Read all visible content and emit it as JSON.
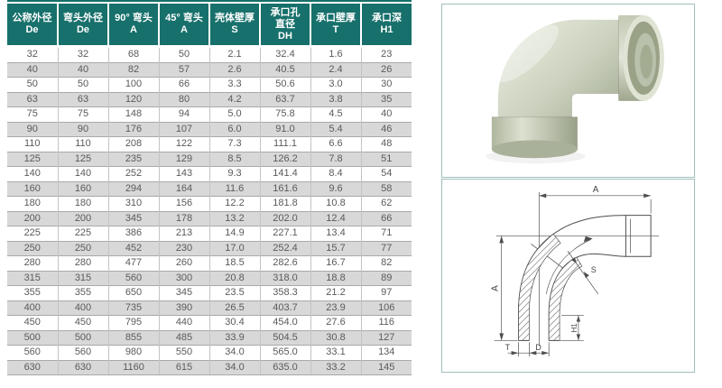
{
  "table": {
    "columns": [
      {
        "lines": [
          "公称外径",
          "De"
        ]
      },
      {
        "lines": [
          "弯头外径",
          "De"
        ]
      },
      {
        "lines": [
          "90° 弯头",
          "A"
        ]
      },
      {
        "lines": [
          "45° 弯头",
          "A"
        ]
      },
      {
        "lines": [
          "壳体壁厚",
          "S"
        ]
      },
      {
        "lines": [
          "承口孔",
          "直径",
          "DH"
        ]
      },
      {
        "lines": [
          "承口壁厚",
          "T"
        ]
      },
      {
        "lines": [
          "承口深",
          "H1"
        ]
      }
    ],
    "rows": [
      [
        "32",
        "32",
        "68",
        "50",
        "2.1",
        "32.4",
        "1.6",
        "23"
      ],
      [
        "40",
        "40",
        "82",
        "57",
        "2.6",
        "40.5",
        "2.4",
        "26"
      ],
      [
        "50",
        "50",
        "100",
        "66",
        "3.3",
        "50.6",
        "3.0",
        "30"
      ],
      [
        "63",
        "63",
        "120",
        "80",
        "4.2",
        "63.7",
        "3.8",
        "35"
      ],
      [
        "75",
        "75",
        "148",
        "94",
        "5.0",
        "75.8",
        "4.5",
        "40"
      ],
      [
        "90",
        "90",
        "176",
        "107",
        "6.0",
        "91.0",
        "5.4",
        "46"
      ],
      [
        "110",
        "110",
        "208",
        "122",
        "7.3",
        "111.1",
        "6.6",
        "48"
      ],
      [
        "125",
        "125",
        "235",
        "129",
        "8.5",
        "126.2",
        "7.8",
        "51"
      ],
      [
        "140",
        "140",
        "252",
        "143",
        "9.3",
        "141.4",
        "8.4",
        "54"
      ],
      [
        "160",
        "160",
        "294",
        "164",
        "11.6",
        "161.6",
        "9.6",
        "58"
      ],
      [
        "180",
        "180",
        "310",
        "156",
        "12.2",
        "181.8",
        "10.8",
        "62"
      ],
      [
        "200",
        "200",
        "345",
        "178",
        "13.2",
        "202.0",
        "12.4",
        "66"
      ],
      [
        "225",
        "225",
        "386",
        "213",
        "14.9",
        "227.1",
        "13.4",
        "71"
      ],
      [
        "250",
        "250",
        "452",
        "230",
        "17.0",
        "252.4",
        "15.7",
        "77"
      ],
      [
        "280",
        "280",
        "477",
        "260",
        "18.5",
        "282.6",
        "16.7",
        "82"
      ],
      [
        "315",
        "315",
        "560",
        "300",
        "20.8",
        "318.0",
        "18.8",
        "89"
      ],
      [
        "355",
        "355",
        "650",
        "345",
        "23.5",
        "358.3",
        "21.2",
        "97"
      ],
      [
        "400",
        "400",
        "735",
        "390",
        "26.5",
        "403.7",
        "23.9",
        "106"
      ],
      [
        "450",
        "450",
        "795",
        "440",
        "30.4",
        "454.0",
        "27.6",
        "116"
      ],
      [
        "500",
        "500",
        "855",
        "485",
        "33.9",
        "504.5",
        "30.8",
        "127"
      ],
      [
        "560",
        "560",
        "980",
        "550",
        "34.0",
        "565.0",
        "33.1",
        "134"
      ],
      [
        "630",
        "630",
        "1160",
        "615",
        "34.0",
        "635.0",
        "33.2",
        "145"
      ]
    ]
  },
  "diagram": {
    "dim_top": "A",
    "dim_left": "A",
    "dim_wall": "S",
    "dim_socket_depth": "H1",
    "dim_t": "T",
    "dim_d": "D"
  },
  "photo": {
    "subject": "90-degree-sweep-elbow-fitting"
  },
  "colors": {
    "header_bg": "#17706b",
    "header_text": "#ffffff",
    "row_stripe": "#d8d8d8",
    "cell_text": "#5a5a5a",
    "grid_line": "#a9a9a9",
    "panel_border": "#9fbfbc",
    "diagram_line": "#4d4d4d",
    "elbow_light": "#ecefe2",
    "elbow_mid": "#cdd3c0",
    "elbow_dark": "#9aa289"
  }
}
